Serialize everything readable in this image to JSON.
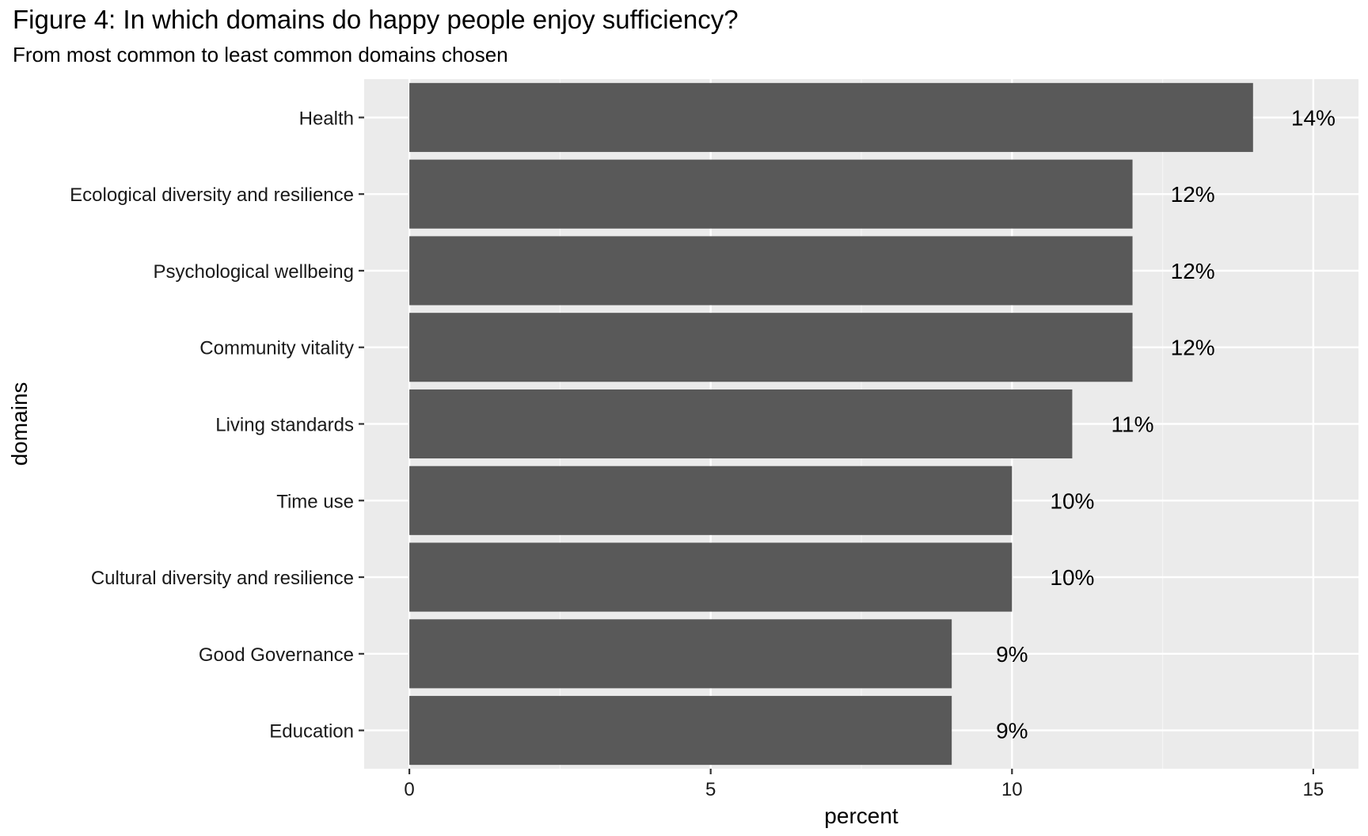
{
  "chart_data": {
    "type": "bar",
    "orientation": "horizontal",
    "title": "Figure 4: In which domains do happy people enjoy sufficiency?",
    "subtitle": "From most common to least common domains chosen",
    "xlabel": "percent",
    "ylabel": "domains",
    "categories": [
      "Health",
      "Ecological diversity and resilience",
      "Psychological wellbeing",
      "Community vitality",
      "Living standards",
      "Time use",
      "Cultural diversity and resilience",
      "Good Governance",
      "Education"
    ],
    "values": [
      14,
      12,
      12,
      12,
      11,
      10,
      10,
      9,
      9
    ],
    "data_labels": [
      "14%",
      "12%",
      "12%",
      "12%",
      "11%",
      "10%",
      "10%",
      "9%",
      "9%"
    ],
    "x_ticks": [
      0,
      5,
      10,
      15
    ],
    "x_tick_labels": [
      "0",
      "5",
      "10",
      "15"
    ],
    "xlim": [
      -0.75,
      15.75
    ],
    "grid": true,
    "legend": "none",
    "colors": {
      "bar": "#595959",
      "panel": "#ebebeb",
      "grid_major": "#ffffff",
      "grid_minor": "#f5f5f5"
    }
  }
}
